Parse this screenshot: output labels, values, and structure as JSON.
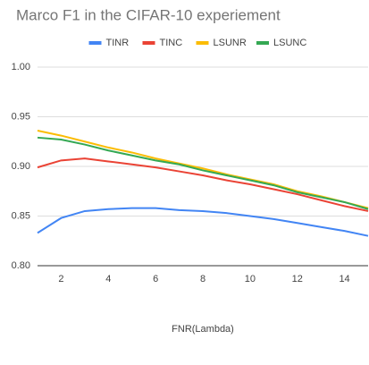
{
  "chart_data": {
    "type": "line",
    "title": "Marco F1 in the CIFAR-10 experiement",
    "x_label": "FNR(Lambda)",
    "x": [
      1,
      2,
      3,
      4,
      5,
      6,
      7,
      8,
      9,
      10,
      11,
      12,
      13,
      14,
      15
    ],
    "series": [
      {
        "name": "TINR",
        "color": "#4285f4",
        "values": [
          0.833,
          0.848,
          0.855,
          0.857,
          0.858,
          0.858,
          0.856,
          0.855,
          0.853,
          0.85,
          0.847,
          0.843,
          0.839,
          0.835,
          0.83
        ]
      },
      {
        "name": "TINC",
        "color": "#ea4335",
        "values": [
          0.899,
          0.906,
          0.908,
          0.905,
          0.902,
          0.899,
          0.895,
          0.891,
          0.886,
          0.882,
          0.877,
          0.872,
          0.866,
          0.86,
          0.855
        ]
      },
      {
        "name": "LSUNR",
        "color": "#fbbc04",
        "values": [
          0.936,
          0.931,
          0.925,
          0.919,
          0.914,
          0.908,
          0.903,
          0.898,
          0.892,
          0.887,
          0.882,
          0.875,
          0.87,
          0.864,
          0.858
        ]
      },
      {
        "name": "LSUNC",
        "color": "#34a853",
        "values": [
          0.929,
          0.927,
          0.922,
          0.916,
          0.911,
          0.906,
          0.902,
          0.896,
          0.891,
          0.886,
          0.881,
          0.874,
          0.869,
          0.864,
          0.857
        ]
      }
    ],
    "xlim": [
      1,
      15
    ],
    "xticks": [
      2,
      4,
      6,
      8,
      10,
      12,
      14
    ],
    "ylim": [
      0.8,
      1.0
    ],
    "yticks": [
      {
        "value": 0.8,
        "label": "0.80"
      },
      0.85,
      {
        "value": 0.9,
        "label": "0.90"
      },
      0.95,
      {
        "value": 1.0,
        "label": "1.00"
      }
    ],
    "grid": true,
    "legend": "top"
  }
}
